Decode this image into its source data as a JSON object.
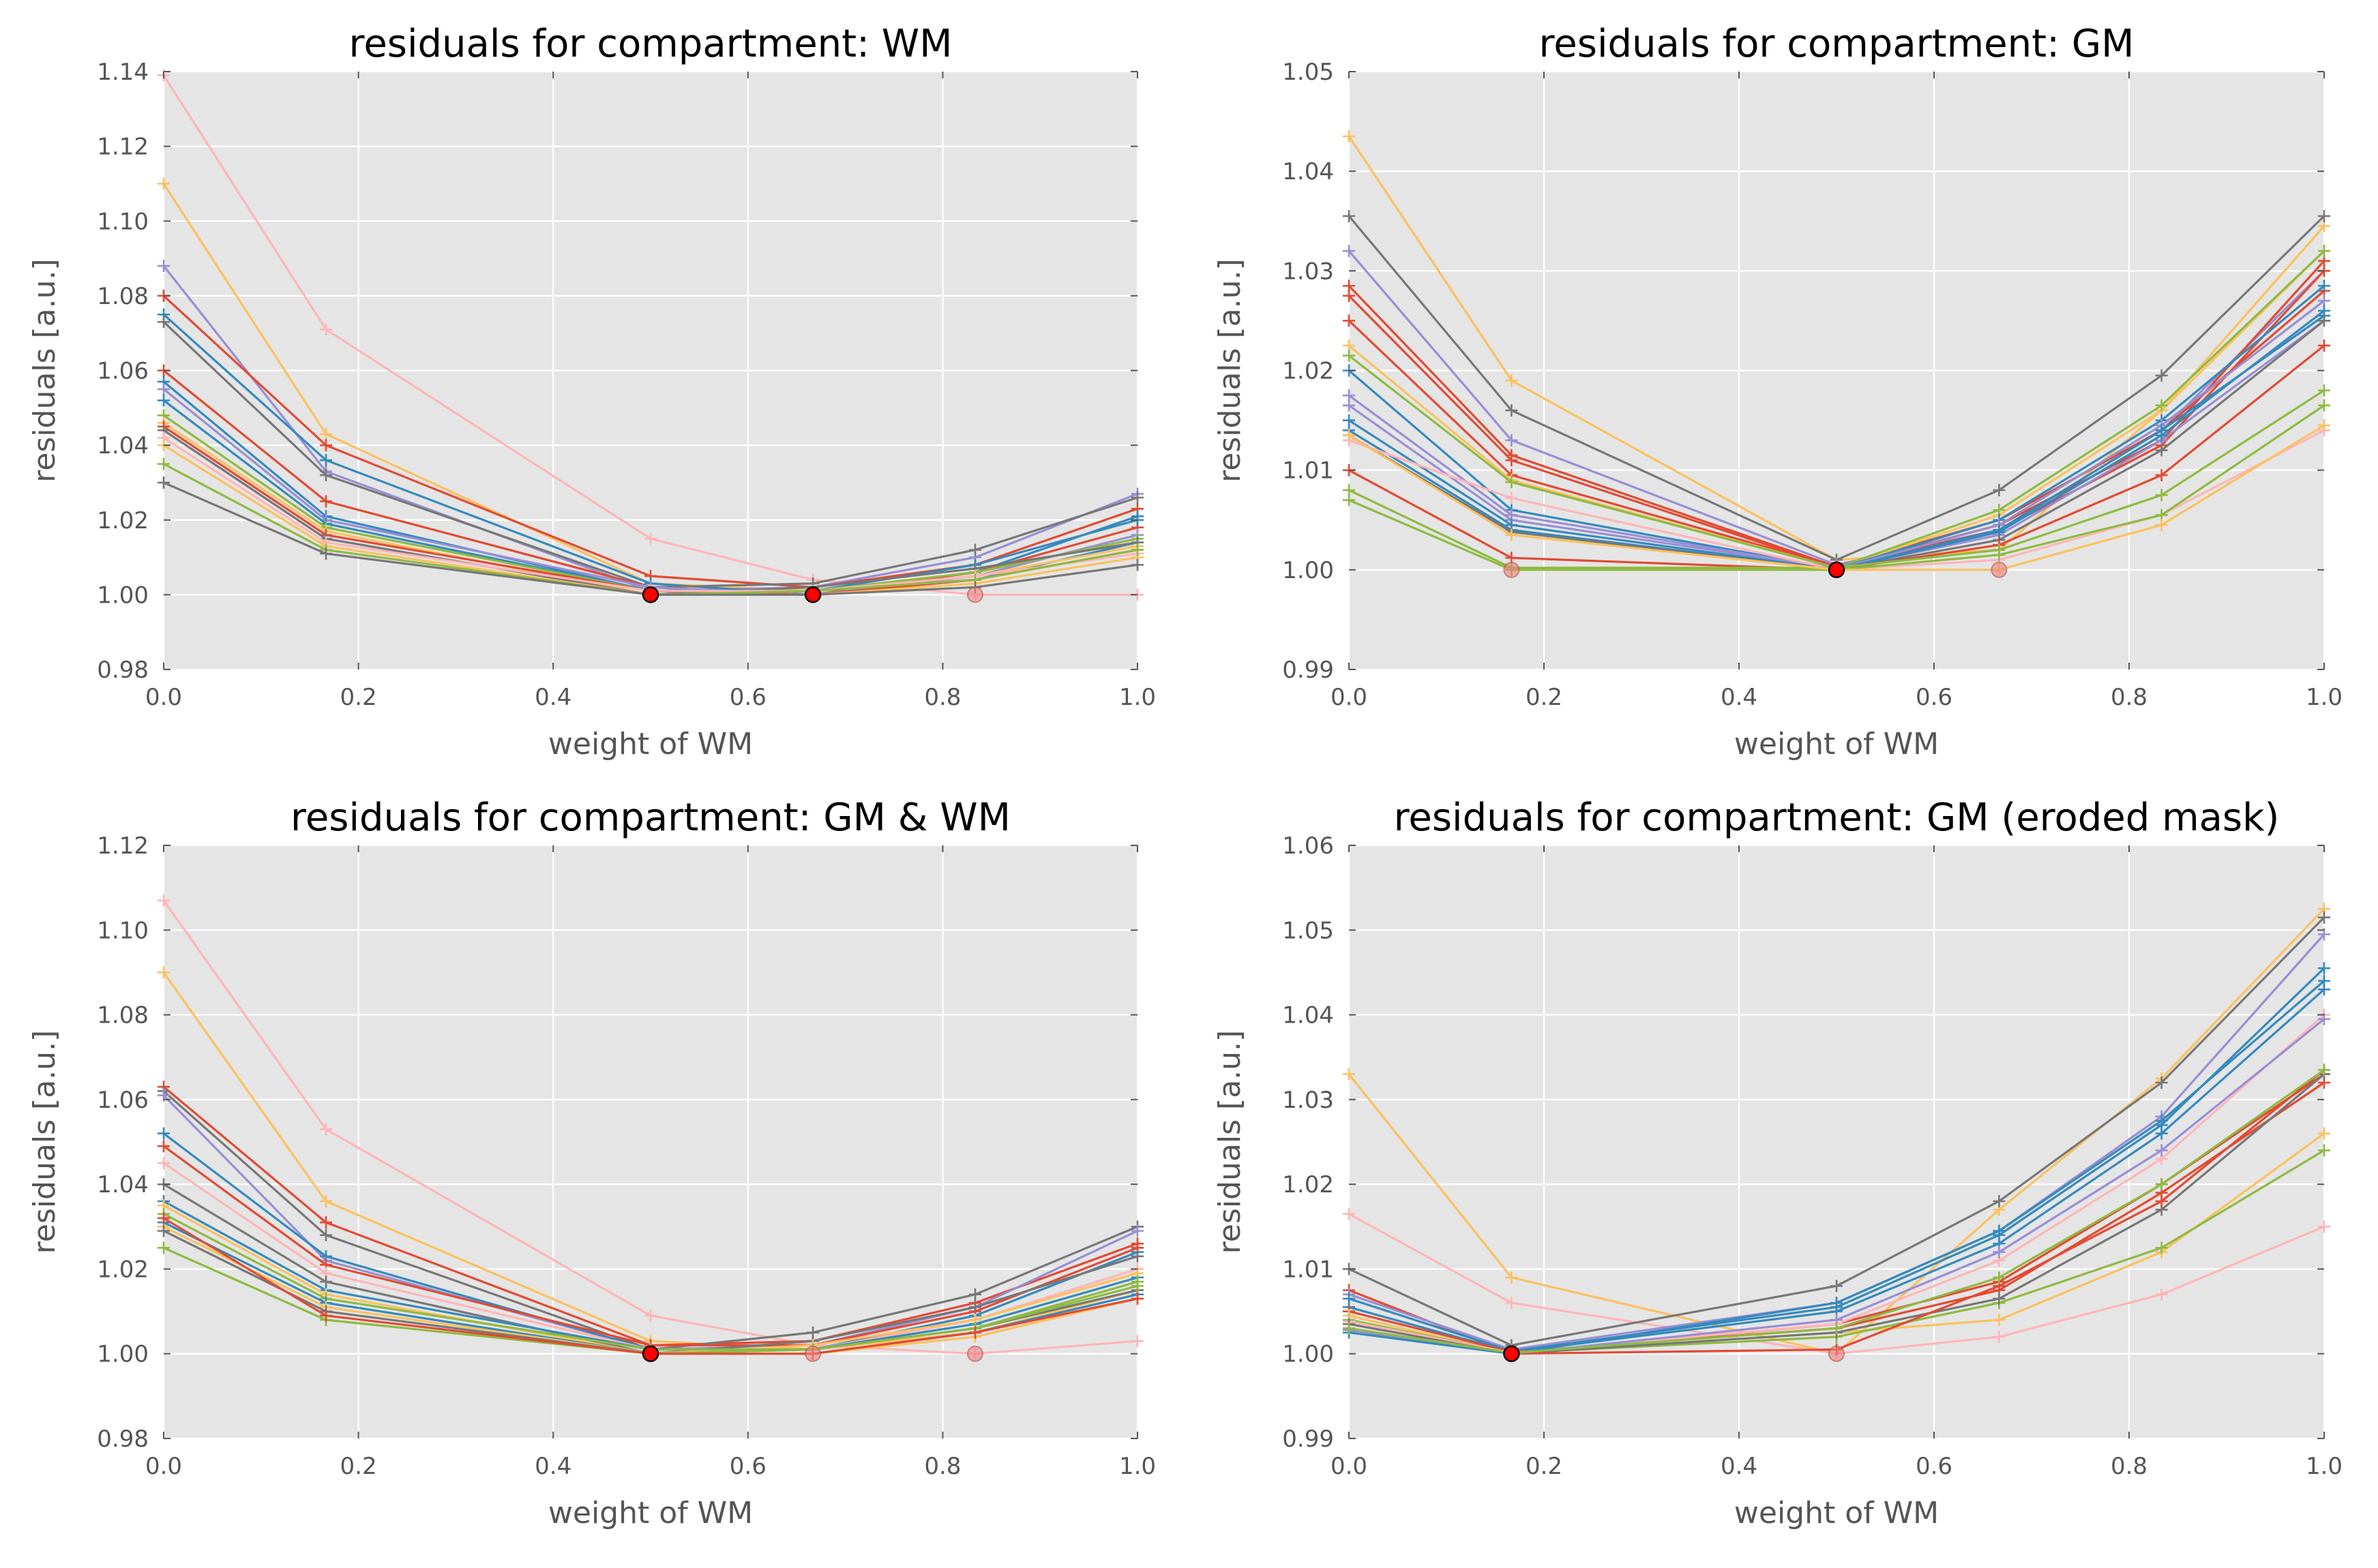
{
  "figure": {
    "plot_bg": "#e5e5e5",
    "grid_color": "#ffffff",
    "tick_text_color": "#555555",
    "title_color": "#000000",
    "optimum_marker_color": "#ff0000",
    "secondary_marker_color": "#f08080"
  },
  "chart_data": [
    {
      "type": "line",
      "title": "residuals for compartment: WM",
      "xlabel": "weight of WM",
      "ylabel": "residuals [a.u.]",
      "xlim": [
        0,
        1
      ],
      "ylim": [
        0.98,
        1.14
      ],
      "xticks": [
        "0.0",
        "0.2",
        "0.4",
        "0.6",
        "0.8",
        "1.0"
      ],
      "yticks": [
        "0.98",
        "1.00",
        "1.02",
        "1.04",
        "1.06",
        "1.08",
        "1.10",
        "1.12",
        "1.14"
      ],
      "x": [
        0,
        0.1667,
        0.5,
        0.6667,
        0.8333,
        1.0
      ],
      "series": [
        {
          "name": "s1",
          "color": "#ffb5b8",
          "values": [
            1.139,
            1.071,
            1.015,
            1.004,
            1.0,
            1.0
          ]
        },
        {
          "name": "s2",
          "color": "#fbc15e",
          "values": [
            1.11,
            1.043,
            1.003,
            1.001,
            1.004,
            1.012
          ]
        },
        {
          "name": "s3",
          "color": "#988ed5",
          "values": [
            1.088,
            1.033,
            1.001,
            1.002,
            1.01,
            1.027
          ]
        },
        {
          "name": "s4",
          "color": "#e24a33",
          "values": [
            1.08,
            1.04,
            1.005,
            1.002,
            1.008,
            1.023
          ]
        },
        {
          "name": "s5",
          "color": "#348abd",
          "values": [
            1.075,
            1.036,
            1.003,
            1.0,
            1.006,
            1.021
          ]
        },
        {
          "name": "s6",
          "color": "#777777",
          "values": [
            1.073,
            1.032,
            1.002,
            1.003,
            1.012,
            1.026
          ]
        },
        {
          "name": "s7",
          "color": "#e24a33",
          "values": [
            1.06,
            1.025,
            1.002,
            1.0,
            1.006,
            1.018
          ]
        },
        {
          "name": "s8",
          "color": "#348abd",
          "values": [
            1.057,
            1.021,
            1.001,
            1.001,
            1.008,
            1.02
          ]
        },
        {
          "name": "s9",
          "color": "#988ed5",
          "values": [
            1.055,
            1.02,
            1.002,
            1.0,
            1.005,
            1.016
          ]
        },
        {
          "name": "s10",
          "color": "#348abd",
          "values": [
            1.052,
            1.019,
            1.001,
            1.0,
            1.004,
            1.014
          ]
        },
        {
          "name": "s11",
          "color": "#8eba42",
          "values": [
            1.048,
            1.018,
            1.001,
            1.001,
            1.006,
            1.015
          ]
        },
        {
          "name": "s12",
          "color": "#fbc15e",
          "values": [
            1.046,
            1.017,
            1.0,
            1.001,
            1.005,
            1.013
          ]
        },
        {
          "name": "s13",
          "color": "#e24a33",
          "values": [
            1.045,
            1.016,
            1.001,
            1.0,
            1.004,
            1.012
          ]
        },
        {
          "name": "s14",
          "color": "#777777",
          "values": [
            1.044,
            1.015,
            1.0,
            1.002,
            1.007,
            1.014
          ]
        },
        {
          "name": "s15",
          "color": "#ffb5b8",
          "values": [
            1.042,
            1.014,
            1.001,
            1.001,
            1.005,
            1.011
          ]
        },
        {
          "name": "s16",
          "color": "#fbc15e",
          "values": [
            1.04,
            1.013,
            1.0,
            1.0,
            1.003,
            1.01
          ]
        },
        {
          "name": "s17",
          "color": "#8eba42",
          "values": [
            1.035,
            1.012,
            1.0,
            1.001,
            1.004,
            1.012
          ]
        },
        {
          "name": "s18",
          "color": "#777777",
          "values": [
            1.03,
            1.011,
            1.0,
            1.0,
            1.002,
            1.008
          ]
        }
      ],
      "optimum_points": [
        [
          0.5,
          1.0
        ],
        [
          0.6667,
          1.0
        ]
      ],
      "secondary_points": [
        [
          0.8333,
          1.0
        ]
      ]
    },
    {
      "type": "line",
      "title": "residuals for compartment: GM",
      "xlabel": "weight of WM",
      "ylabel": "residuals [a.u.]",
      "xlim": [
        0,
        1
      ],
      "ylim": [
        0.99,
        1.05
      ],
      "xticks": [
        "0.0",
        "0.2",
        "0.4",
        "0.6",
        "0.8",
        "1.0"
      ],
      "yticks": [
        "0.99",
        "1.00",
        "1.01",
        "1.02",
        "1.03",
        "1.04",
        "1.05"
      ],
      "x": [
        0,
        0.1667,
        0.5,
        0.6667,
        0.8333,
        1.0
      ],
      "series": [
        {
          "name": "s1",
          "color": "#fbc15e",
          "values": [
            1.0435,
            1.019,
            1.001,
            1.002,
            1.016,
            1.0345
          ]
        },
        {
          "name": "s2",
          "color": "#777777",
          "values": [
            1.0355,
            1.016,
            1.001,
            1.008,
            1.0195,
            1.0355
          ]
        },
        {
          "name": "s3",
          "color": "#988ed5",
          "values": [
            1.032,
            1.013,
            1.0005,
            1.004,
            1.014,
            1.03
          ]
        },
        {
          "name": "s4",
          "color": "#e24a33",
          "values": [
            1.0285,
            1.0115,
            1.0003,
            1.004,
            1.0125,
            1.03
          ]
        },
        {
          "name": "s5",
          "color": "#e24a33",
          "values": [
            1.0275,
            1.011,
            1.0002,
            1.0045,
            1.013,
            1.031
          ]
        },
        {
          "name": "s6",
          "color": "#e24a33",
          "values": [
            1.025,
            1.0095,
            1.0003,
            1.005,
            1.014,
            1.028
          ]
        },
        {
          "name": "s7",
          "color": "#fbc15e",
          "values": [
            1.0225,
            1.009,
            1.0002,
            1.0055,
            1.016,
            1.032
          ]
        },
        {
          "name": "s8",
          "color": "#8eba42",
          "values": [
            1.0215,
            1.0088,
            1.0002,
            1.006,
            1.0165,
            1.032
          ]
        },
        {
          "name": "s9",
          "color": "#348abd",
          "values": [
            1.02,
            1.006,
            1.0001,
            1.005,
            1.015,
            1.0285
          ]
        },
        {
          "name": "s10",
          "color": "#988ed5",
          "values": [
            1.0175,
            1.0055,
            1.0001,
            1.0045,
            1.0145,
            1.027
          ]
        },
        {
          "name": "s11",
          "color": "#988ed5",
          "values": [
            1.0165,
            1.005,
            1.0001,
            1.0035,
            1.013,
            1.025
          ]
        },
        {
          "name": "s12",
          "color": "#348abd",
          "values": [
            1.015,
            1.0045,
            1.0,
            1.004,
            1.014,
            1.0255
          ]
        },
        {
          "name": "s13",
          "color": "#348abd",
          "values": [
            1.014,
            1.004,
            1.0,
            1.0038,
            1.0135,
            1.026
          ]
        },
        {
          "name": "s14",
          "color": "#777777",
          "values": [
            1.0135,
            1.0038,
            1.0,
            1.003,
            1.012,
            1.025
          ]
        },
        {
          "name": "s15",
          "color": "#ffb5b8",
          "values": [
            1.013,
            1.0072,
            1.0,
            1.001,
            1.0055,
            1.014
          ]
        },
        {
          "name": "s16",
          "color": "#e24a33",
          "values": [
            1.01,
            1.0012,
            1.0,
            1.0025,
            1.0095,
            1.0225
          ]
        },
        {
          "name": "s17",
          "color": "#8eba42",
          "values": [
            1.008,
            1.0002,
            1.0002,
            1.002,
            1.0075,
            1.018
          ]
        },
        {
          "name": "s18",
          "color": "#8eba42",
          "values": [
            1.007,
            1.0,
            1.0,
            1.0015,
            1.0055,
            1.0165
          ]
        },
        {
          "name": "s19",
          "color": "#fbc15e",
          "values": [
            1.0135,
            1.0035,
            1.0,
            1.0,
            1.0045,
            1.0145
          ]
        }
      ],
      "optimum_points": [
        [
          0.5,
          1.0
        ]
      ],
      "secondary_points": [
        [
          0.1667,
          1.0
        ],
        [
          0.6667,
          1.0
        ]
      ]
    },
    {
      "type": "line",
      "title": "residuals for compartment: GM & WM",
      "xlabel": "weight of WM",
      "ylabel": "residuals [a.u.]",
      "xlim": [
        0,
        1
      ],
      "ylim": [
        0.98,
        1.12
      ],
      "xticks": [
        "0.0",
        "0.2",
        "0.4",
        "0.6",
        "0.8",
        "1.0"
      ],
      "yticks": [
        "0.98",
        "1.00",
        "1.02",
        "1.04",
        "1.06",
        "1.08",
        "1.10",
        "1.12"
      ],
      "x": [
        0,
        0.1667,
        0.5,
        0.6667,
        0.8333,
        1.0
      ],
      "series": [
        {
          "name": "s1",
          "color": "#ffb5b8",
          "values": [
            1.107,
            1.053,
            1.009,
            1.002,
            1.0,
            1.003
          ]
        },
        {
          "name": "s2",
          "color": "#fbc15e",
          "values": [
            1.09,
            1.036,
            1.003,
            1.001,
            1.005,
            1.015
          ]
        },
        {
          "name": "s3",
          "color": "#e24a33",
          "values": [
            1.063,
            1.031,
            1.002,
            1.003,
            1.012,
            1.026
          ]
        },
        {
          "name": "s4",
          "color": "#777777",
          "values": [
            1.062,
            1.028,
            1.001,
            1.005,
            1.014,
            1.03
          ]
        },
        {
          "name": "s5",
          "color": "#988ed5",
          "values": [
            1.061,
            1.022,
            1.001,
            1.002,
            1.011,
            1.029
          ]
        },
        {
          "name": "s6",
          "color": "#348abd",
          "values": [
            1.052,
            1.023,
            1.001,
            1.001,
            1.009,
            1.024
          ]
        },
        {
          "name": "s7",
          "color": "#e24a33",
          "values": [
            1.049,
            1.021,
            1.002,
            1.002,
            1.01,
            1.025
          ]
        },
        {
          "name": "s8",
          "color": "#ffb5b8",
          "values": [
            1.045,
            1.019,
            1.001,
            1.001,
            1.008,
            1.02
          ]
        },
        {
          "name": "s9",
          "color": "#777777",
          "values": [
            1.04,
            1.017,
            1.0,
            1.003,
            1.011,
            1.023
          ]
        },
        {
          "name": "s10",
          "color": "#348abd",
          "values": [
            1.036,
            1.015,
            1.001,
            1.001,
            1.007,
            1.018
          ]
        },
        {
          "name": "s11",
          "color": "#fbc15e",
          "values": [
            1.035,
            1.014,
            1.0,
            1.002,
            1.008,
            1.019
          ]
        },
        {
          "name": "s12",
          "color": "#8eba42",
          "values": [
            1.033,
            1.013,
            1.001,
            1.001,
            1.006,
            1.017
          ]
        },
        {
          "name": "s13",
          "color": "#348abd",
          "values": [
            1.031,
            1.012,
            1.0,
            1.0,
            1.005,
            1.014
          ]
        },
        {
          "name": "s14",
          "color": "#fbc15e",
          "values": [
            1.03,
            1.011,
            1.0,
            1.0,
            1.004,
            1.013
          ]
        },
        {
          "name": "s15",
          "color": "#777777",
          "values": [
            1.029,
            1.01,
            1.0,
            1.001,
            1.006,
            1.015
          ]
        },
        {
          "name": "s16",
          "color": "#8eba42",
          "values": [
            1.025,
            1.008,
            1.0,
            1.001,
            1.006,
            1.016
          ]
        },
        {
          "name": "s17",
          "color": "#e24a33",
          "values": [
            1.032,
            1.009,
            1.0,
            1.0,
            1.005,
            1.013
          ]
        }
      ],
      "optimum_points": [
        [
          0.5,
          1.0
        ]
      ],
      "secondary_points": [
        [
          0.6667,
          1.0
        ],
        [
          0.8333,
          1.0
        ]
      ]
    },
    {
      "type": "line",
      "title": "residuals for compartment: GM (eroded mask)",
      "xlabel": "weight of WM",
      "ylabel": "residuals [a.u.]",
      "xlim": [
        0,
        1
      ],
      "ylim": [
        0.99,
        1.06
      ],
      "xticks": [
        "0.0",
        "0.2",
        "0.4",
        "0.6",
        "0.8",
        "1.0"
      ],
      "yticks": [
        "0.99",
        "1.00",
        "1.01",
        "1.02",
        "1.03",
        "1.04",
        "1.05",
        "1.06"
      ],
      "x": [
        0,
        0.1667,
        0.5,
        0.6667,
        0.8333,
        1.0
      ],
      "series": [
        {
          "name": "s1",
          "color": "#fbc15e",
          "values": [
            1.033,
            1.009,
            1.0,
            1.017,
            1.0325,
            1.0525
          ]
        },
        {
          "name": "s2",
          "color": "#ffb5b8",
          "values": [
            1.0165,
            1.006,
            1.0,
            1.002,
            1.007,
            1.015
          ]
        },
        {
          "name": "s3",
          "color": "#777777",
          "values": [
            1.01,
            1.001,
            1.008,
            1.018,
            1.032,
            1.0515
          ]
        },
        {
          "name": "s4",
          "color": "#e24a33",
          "values": [
            1.0075,
            1.0,
            1.0035,
            1.0085,
            1.02,
            1.033
          ]
        },
        {
          "name": "s5",
          "color": "#988ed5",
          "values": [
            1.007,
            1.0005,
            1.006,
            1.0145,
            1.028,
            1.0495
          ]
        },
        {
          "name": "s6",
          "color": "#348abd",
          "values": [
            1.0065,
            1.0003,
            1.0055,
            1.014,
            1.027,
            1.0455
          ]
        },
        {
          "name": "s7",
          "color": "#348abd",
          "values": [
            1.0055,
            1.0002,
            1.005,
            1.013,
            1.026,
            1.043
          ]
        },
        {
          "name": "s8",
          "color": "#e24a33",
          "values": [
            1.005,
            1.0002,
            1.003,
            1.0075,
            1.019,
            1.032
          ]
        },
        {
          "name": "s9",
          "color": "#fbc15e",
          "values": [
            1.0045,
            1.0,
            1.0025,
            1.004,
            1.012,
            1.026
          ]
        },
        {
          "name": "s10",
          "color": "#8eba42",
          "values": [
            1.004,
            1.0001,
            1.002,
            1.006,
            1.0125,
            1.024
          ]
        },
        {
          "name": "s11",
          "color": "#ffb5b8",
          "values": [
            1.0038,
            1.0001,
            1.0035,
            1.011,
            1.023,
            1.04
          ]
        },
        {
          "name": "s12",
          "color": "#777777",
          "values": [
            1.0035,
            1.0,
            1.0025,
            1.0065,
            1.017,
            1.033
          ]
        },
        {
          "name": "s13",
          "color": "#e24a33",
          "values": [
            1.003,
            1.0,
            1.0005,
            1.008,
            1.018,
            1.0335
          ]
        },
        {
          "name": "s14",
          "color": "#988ed5",
          "values": [
            1.0028,
            1.0,
            1.004,
            1.012,
            1.024,
            1.0395
          ]
        },
        {
          "name": "s15",
          "color": "#348abd",
          "values": [
            1.0025,
            1.0,
            1.006,
            1.0145,
            1.0275,
            1.044
          ]
        },
        {
          "name": "s16",
          "color": "#8eba42",
          "values": [
            1.003,
            1.0001,
            1.003,
            1.009,
            1.02,
            1.0335
          ]
        }
      ],
      "optimum_points": [
        [
          0.1667,
          1.0
        ]
      ],
      "secondary_points": [
        [
          0.5,
          1.0
        ]
      ]
    }
  ]
}
